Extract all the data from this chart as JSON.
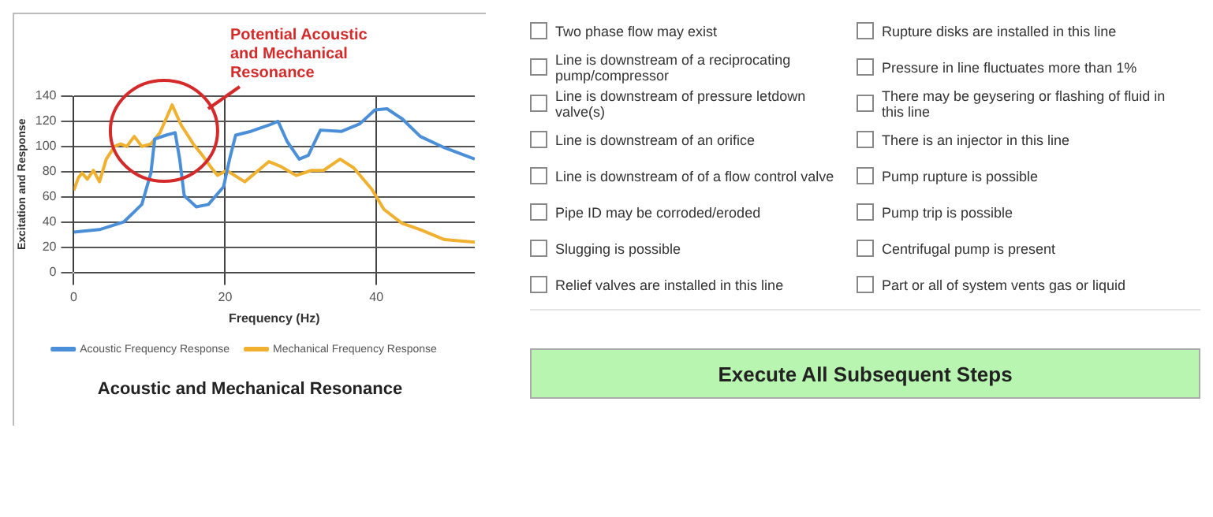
{
  "chart_data": [
    {
      "type": "line",
      "title": "Acoustic and Mechanical Resonance",
      "xlabel": "Frequency (Hz)",
      "ylabel": "Excitation and Response",
      "xlim": [
        0,
        53
      ],
      "xticks": [
        0,
        20,
        40
      ],
      "ylim": [
        0,
        140
      ],
      "yticks": [
        0,
        20,
        40,
        60,
        80,
        100,
        120,
        140
      ],
      "grid": true,
      "legend": "bottom",
      "marker": "none",
      "line_style": "solid",
      "annotations": [
        "Potential Acoustic and Mechanical Resonance"
      ],
      "series": [
        {
          "name": "Acoustic Frequency Response",
          "color": "#4a8fd8",
          "x": [
            0,
            3.4,
            6.6,
            9,
            10.2,
            10.7,
            12.2,
            13.4,
            14,
            14.6,
            16.2,
            17.8,
            19.8,
            20.6,
            21.4,
            23.4,
            25.8,
            27,
            28.2,
            29.8,
            31,
            32.6,
            35.4,
            37.8,
            39.8,
            41.4,
            43.4,
            45.8,
            49,
            53
          ],
          "values": [
            32,
            34,
            40,
            54,
            79,
            106,
            109,
            111,
            90,
            61,
            52,
            54,
            68,
            90,
            109,
            112,
            117,
            120,
            104,
            90,
            93,
            113,
            112,
            118,
            129,
            130,
            122,
            108,
            99,
            90
          ]
        },
        {
          "name": "Mechanical Frequency Response",
          "color": "#f0b030",
          "x": [
            0,
            0.6,
            1.1,
            1.8,
            2.6,
            3.4,
            4.3,
            5.4,
            6.2,
            7,
            8,
            9,
            10.2,
            11.4,
            13,
            14.2,
            15.8,
            17,
            18.2,
            19,
            20.2,
            22.6,
            25.8,
            27.4,
            29.4,
            31.4,
            33,
            35.2,
            37,
            39.4,
            41,
            43.4,
            45.8,
            49,
            53
          ],
          "values": [
            65,
            75,
            79,
            74,
            81,
            72,
            90,
            100,
            102,
            100,
            108,
            100,
            102,
            111,
            133,
            117,
            102,
            93,
            83,
            77,
            81,
            72,
            88,
            84,
            77,
            81,
            81,
            90,
            83,
            66,
            50,
            39,
            34,
            26,
            24
          ]
        }
      ]
    },
    {
      "type": "other",
      "annotations": [
        "Two phase flow may exist",
        "Line is downstream of a reciprocating pump/compressor",
        "Line is downstream of pressure letdown valve(s)",
        "Line is downstream of an orifice",
        "Line is downstream of of a flow control valve",
        "Pipe ID may be corroded/eroded",
        "Slugging is possible",
        "Relief valves are installed in this line",
        "Rupture disks are installed in this line",
        "Pressure in line fluctuates more than 1%",
        "There may be geysering or flashing of fluid in this line",
        "There is an injector in this line",
        "Pump rupture is possible",
        "Pump trip is possible",
        "Centrifugal pump is present",
        "Part or all of system vents gas or liquid",
        "Execute All Subsequent Steps"
      ]
    }
  ]
}
